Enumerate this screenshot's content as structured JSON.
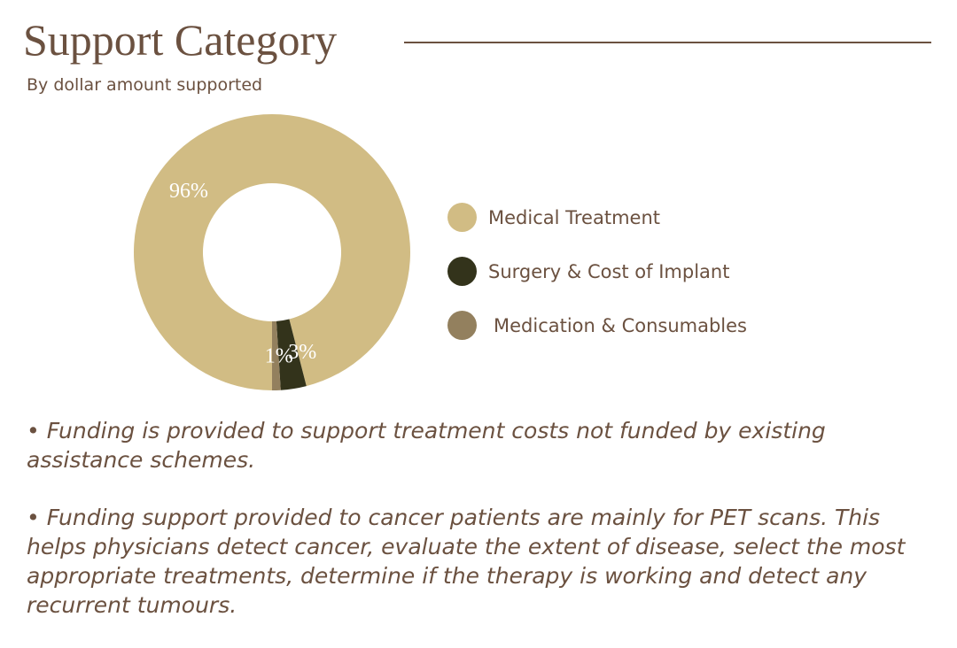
{
  "chart_data": {
    "type": "pie",
    "title": "Support Category",
    "subtitle": "By dollar amount supported",
    "categories": [
      "Medical Treatment",
      "Surgery & Cost of Implant",
      "Medication & Consumables"
    ],
    "values": [
      96,
      3,
      1
    ],
    "data_labels": [
      "96%",
      "3%",
      "1%"
    ],
    "colors": [
      "#D1BC84",
      "#33331B",
      "#93805E"
    ],
    "legend_placement": "right"
  },
  "notes": [
    "• Funding is provided to support treatment costs not funded by existing assistance schemes.",
    "• Funding support provided to cancer patients are mainly for PET scans. This helps physicians detect cancer, evaluate the extent of disease, select the most appropriate treatments, determine if the therapy is working and detect any recurrent tumours."
  ]
}
